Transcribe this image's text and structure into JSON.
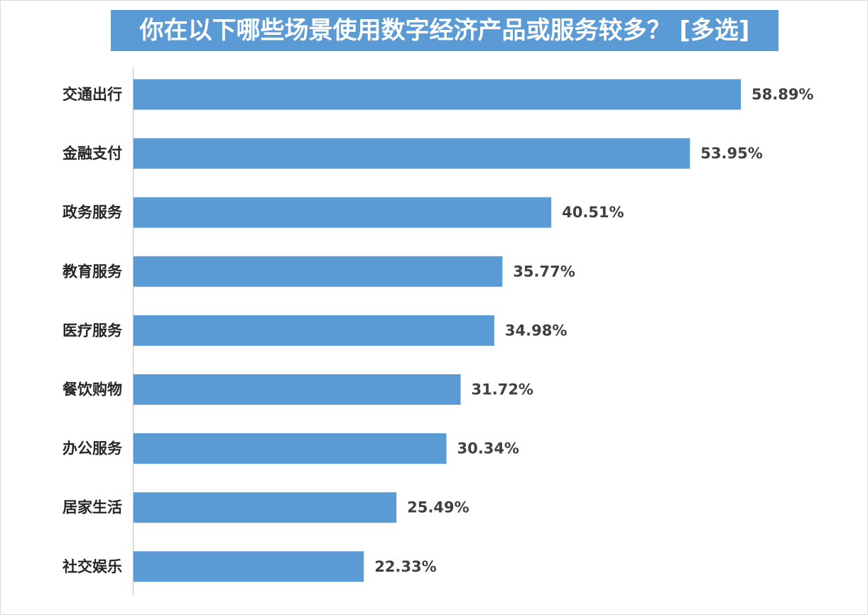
{
  "chart_data": {
    "type": "bar",
    "orientation": "horizontal",
    "title": "你在以下哪些场景使用数字经济产品或服务较多？ [多选]",
    "categories": [
      "交通出行",
      "金融支付",
      "政务服务",
      "教育服务",
      "医疗服务",
      "餐饮购物",
      "办公服务",
      "居家生活",
      "社交娱乐"
    ],
    "values": [
      58.89,
      53.95,
      40.51,
      35.77,
      34.98,
      31.72,
      30.34,
      25.49,
      22.33
    ],
    "value_labels": [
      "58.89%",
      "53.95%",
      "40.51%",
      "35.77%",
      "34.98%",
      "31.72%",
      "30.34%",
      "25.49%",
      "22.33%"
    ],
    "unit": "%",
    "xlim": [
      0,
      60
    ],
    "grid": false,
    "legend": "none",
    "colors": {
      "bar": "#5b9bd5",
      "title_bg": "#5b9bd5",
      "title_text": "#ffffff",
      "axis": "#bfbfbf"
    }
  }
}
